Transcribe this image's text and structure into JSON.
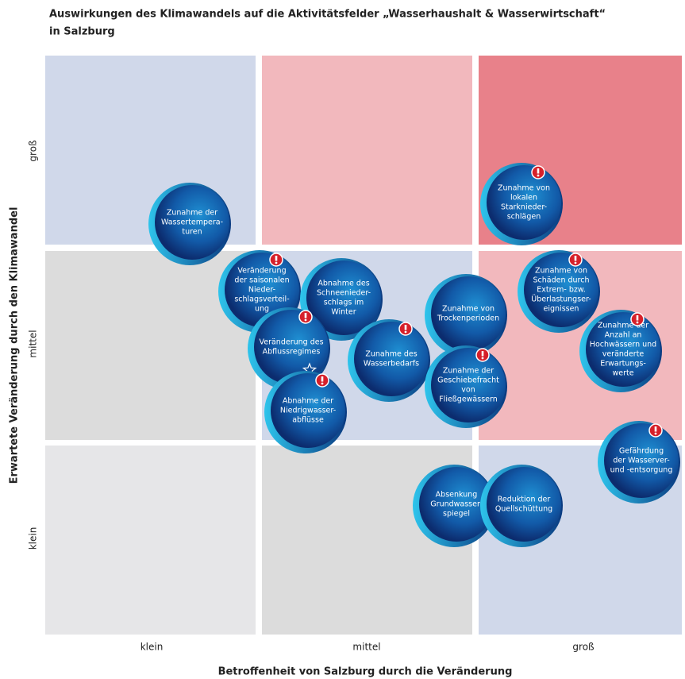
{
  "title": [
    "Auswirkungen des Klimawandels auf die Aktivitätsfelder „Wasserhaushalt & Wasserwirtschaft“",
    "in Salzburg"
  ],
  "x_axis": {
    "title": "Betroffenheit von Salzburg durch die Veränderung",
    "labels": [
      "klein",
      "mittel",
      "groß"
    ]
  },
  "y_axis": {
    "title": "Erwartete Veränderung durch den Klimawandel",
    "labels": [
      "klein",
      "mittel",
      "groß"
    ]
  },
  "cells": [
    [
      "#d0d8ea",
      "#f2b8bd",
      "#e8818a"
    ],
    [
      "#dcdcdc",
      "#d0d8ea",
      "#f2b8bd"
    ],
    [
      "#e6e6e8",
      "#dcdcdc",
      "#d0d8ea"
    ]
  ],
  "bubbles": [
    {
      "lines": [
        "Zunahme der",
        "Wassertempera-",
        "turen"
      ]
    },
    {
      "lines": [
        "Zunahme von",
        "lokalen",
        "Starknieder-",
        "schlägen"
      ],
      "alert": true
    },
    {
      "lines": [
        "Veränderung",
        "der saisonalen",
        "Nieder-",
        "schlagsverteil-",
        "ung"
      ],
      "alert": true
    },
    {
      "lines": [
        "Abnahme des",
        "Schneenieder-",
        "schlags im",
        "Winter"
      ]
    },
    {
      "lines": [
        "Veränderung des",
        "Abflussregimes"
      ],
      "alert": true,
      "star": true
    },
    {
      "lines": [
        "Abnahme der",
        "Niedrigwasser-",
        "abflüsse"
      ],
      "alert": true
    },
    {
      "lines": [
        "Zunahme des",
        "Wasserbedarfs"
      ],
      "alert": true
    },
    {
      "lines": [
        "Zunahme von",
        "Trockenperioden"
      ]
    },
    {
      "lines": [
        "Zunahme der",
        "Geschiebefracht",
        "von",
        "Fließgewässern"
      ],
      "alert": true
    },
    {
      "lines": [
        "Zunahme von",
        "Schäden durch",
        "Extrem- bzw.",
        "Überlastungser-",
        "eignissen"
      ],
      "alert": true
    },
    {
      "lines": [
        "Zunahme der",
        "Anzahl an",
        "Hochwässern und",
        "veränderte",
        "Erwartungs-",
        "werte"
      ],
      "alert": true
    },
    {
      "lines": [
        "Gefährdung",
        "der Wasserver-",
        "und -entsorgung"
      ],
      "alert": true
    },
    {
      "lines": [
        "Absenkung",
        "Grundwasser-",
        "spiegel"
      ]
    },
    {
      "lines": [
        "Reduktion der",
        "Quellschüttung"
      ]
    }
  ]
}
